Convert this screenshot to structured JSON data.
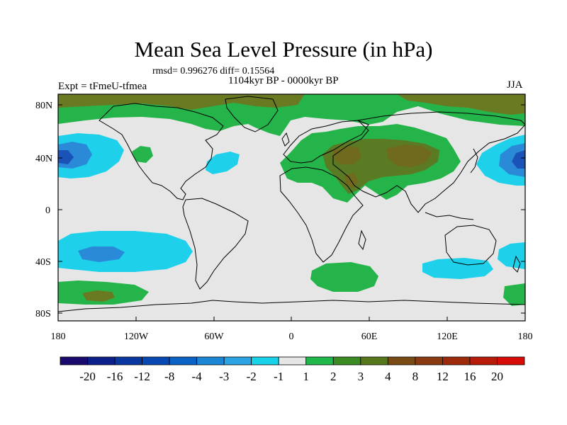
{
  "title": "Mean Sea Level Pressure (in hPa)",
  "stats": "rmsd= 0.996276 diff= 0.15564",
  "period": "1104kyr BP - 0000kyr BP",
  "experiment": "Expt = tFmeU-tfmea",
  "season": "JJA",
  "axes": {
    "x_ticks": [
      "180",
      "120W",
      "60W",
      "0",
      "60E",
      "120E",
      "180"
    ],
    "y_ticks": [
      "80N",
      "40N",
      "0",
      "40S",
      "80S"
    ]
  },
  "colorbar": {
    "labels": [
      "-20",
      "-16",
      "-12",
      "-8",
      "-4",
      "-3",
      "-2",
      "-1",
      "1",
      "2",
      "3",
      "4",
      "8",
      "12",
      "16",
      "20"
    ],
    "colors": [
      "#1a0a6e",
      "#0b1f8a",
      "#0a36a2",
      "#0848b4",
      "#0a62c4",
      "#1b86d6",
      "#2aa4e2",
      "#18d2ea",
      "#e6e6e6",
      "#1fb84a",
      "#3b8a22",
      "#57771c",
      "#7a4a14",
      "#8a3a10",
      "#9e2a0c",
      "#b81a0a",
      "#d90b06"
    ]
  },
  "map_colors": {
    "background": "#e6e6e6",
    "land_outline": "#000000",
    "green": "#25b44a",
    "dark_green": "#5a7a24",
    "brown_green": "#6a6a1c",
    "cyan": "#1ed0ea",
    "blue": "#2a8ad8",
    "deep_blue": "#1a52b8"
  }
}
